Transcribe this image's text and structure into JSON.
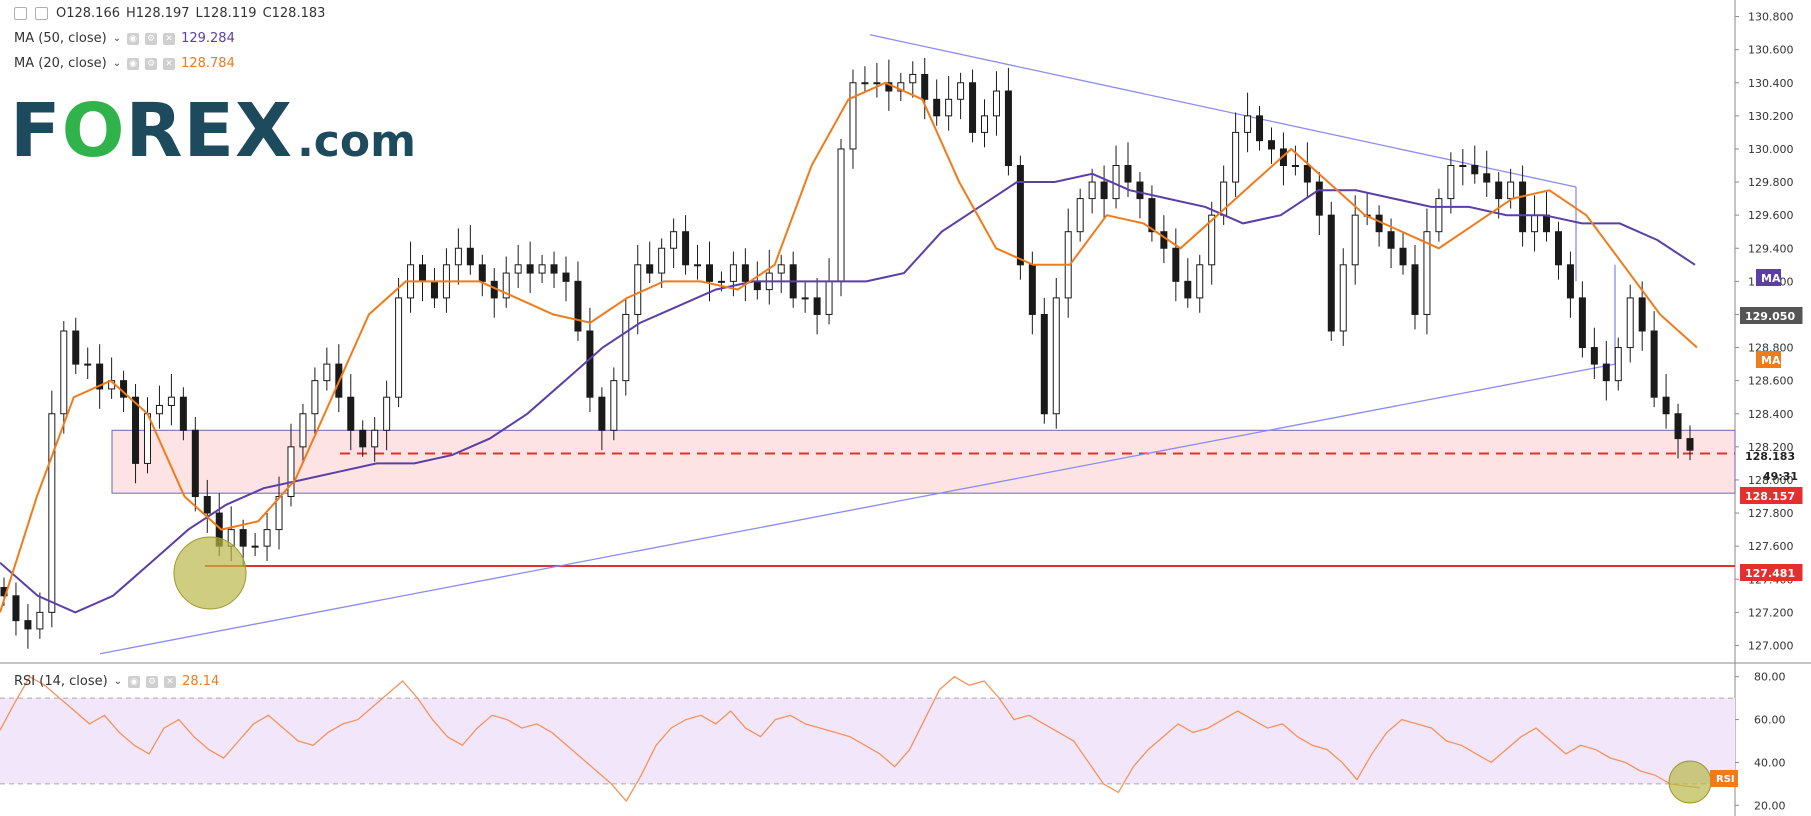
{
  "legend": {
    "ohlc": {
      "open": "O128.166",
      "high": "H128.197",
      "low": "L128.119",
      "close": "C128.183"
    },
    "ma50": {
      "label": "MA (50, close)",
      "value": "129.284"
    },
    "ma20": {
      "label": "MA (20, close)",
      "value": "128.784"
    },
    "rsi": {
      "label": "RSI (14, close)",
      "value": "28.14"
    }
  },
  "logo": {
    "f": "F",
    "o": "O",
    "rex": "REX",
    "dotcom": ".com"
  },
  "colors": {
    "candle": "#1a1a1a",
    "ma50": "#5b3fa6",
    "ma20": "#f07b1a",
    "trendline": "#8a8cf0",
    "zone_fill": "#fde3e3",
    "support": "#e52f2f",
    "rsi_line": "#f5935a",
    "rsi_band": "#f2e6fb",
    "highlight": "#b9b84a"
  },
  "chart_data": [
    {
      "type": "candlestick",
      "title": "",
      "ylim": [
        126.9,
        130.9
      ],
      "y_ticks": [
        "127.000",
        "127.200",
        "127.400",
        "127.600",
        "127.800",
        "128.000",
        "128.200",
        "128.400",
        "128.600",
        "128.800",
        "129.000",
        "129.200",
        "129.400",
        "129.600",
        "129.800",
        "130.000",
        "130.200",
        "130.400",
        "130.600",
        "130.800"
      ],
      "close_series": [
        127.3,
        127.15,
        127.1,
        127.2,
        128.4,
        128.9,
        128.7,
        128.7,
        128.55,
        128.6,
        128.5,
        128.1,
        128.4,
        128.45,
        128.5,
        128.3,
        127.9,
        127.8,
        127.6,
        127.7,
        127.6,
        127.6,
        127.7,
        127.9,
        128.2,
        128.4,
        128.6,
        128.7,
        128.5,
        128.3,
        128.2,
        128.3,
        128.5,
        129.1,
        129.3,
        129.2,
        129.1,
        129.3,
        129.4,
        129.3,
        129.2,
        129.1,
        129.25,
        129.3,
        129.25,
        129.3,
        129.25,
        129.2,
        128.9,
        128.5,
        128.3,
        128.6,
        129.0,
        129.3,
        129.25,
        129.4,
        129.5,
        129.3,
        129.3,
        129.2,
        129.2,
        129.3,
        129.2,
        129.15,
        129.25,
        129.3,
        129.1,
        129.1,
        129.0,
        129.2,
        130.0,
        130.4,
        130.4,
        130.4,
        130.35,
        130.4,
        130.45,
        130.3,
        130.2,
        130.3,
        130.4,
        130.1,
        130.2,
        130.35,
        129.9,
        129.3,
        129.0,
        128.4,
        129.1,
        129.5,
        129.7,
        129.8,
        129.7,
        129.9,
        129.8,
        129.7,
        129.5,
        129.4,
        129.2,
        129.1,
        129.3,
        129.6,
        129.8,
        130.1,
        130.2,
        130.05,
        130.0,
        129.9,
        129.9,
        129.8,
        129.6,
        128.9,
        129.3,
        129.6,
        129.6,
        129.5,
        129.4,
        129.3,
        129.0,
        129.5,
        129.7,
        129.9,
        129.9,
        129.85,
        129.8,
        129.7,
        129.8,
        129.5,
        129.6,
        129.5,
        129.3,
        129.1,
        128.8,
        128.7,
        128.6,
        128.8,
        129.1,
        128.9,
        128.5,
        128.4,
        128.25,
        128.18
      ],
      "ma50_series": [
        127.5,
        127.3,
        127.2,
        127.3,
        127.5,
        127.7,
        127.85,
        127.95,
        128.0,
        128.05,
        128.1,
        128.1,
        128.15,
        128.25,
        128.4,
        128.6,
        128.8,
        128.95,
        129.05,
        129.15,
        129.2,
        129.2,
        129.2,
        129.2,
        129.25,
        129.5,
        129.65,
        129.8,
        129.8,
        129.85,
        129.75,
        129.7,
        129.65,
        129.55,
        129.6,
        129.75,
        129.75,
        129.7,
        129.65,
        129.65,
        129.6,
        129.6,
        129.55,
        129.55,
        129.45,
        129.3
      ],
      "ma20_series": [
        127.2,
        127.9,
        128.5,
        128.6,
        128.4,
        127.9,
        127.7,
        127.75,
        128.0,
        128.5,
        129.0,
        129.2,
        129.2,
        129.2,
        129.1,
        129.0,
        128.95,
        129.1,
        129.2,
        129.2,
        129.15,
        129.3,
        129.9,
        130.3,
        130.4,
        130.3,
        129.8,
        129.4,
        129.3,
        129.3,
        129.6,
        129.55,
        129.4,
        129.6,
        129.8,
        130.0,
        129.8,
        129.6,
        129.5,
        129.4,
        129.55,
        129.7,
        129.75,
        129.6,
        129.3,
        129.0,
        128.8
      ],
      "trendlines": [
        {
          "name": "upper",
          "from": [
            0.0,
            130.69
          ],
          "to": [
            1.0,
            129.77
          ]
        },
        {
          "name": "lower",
          "from": [
            0.0,
            126.95
          ],
          "to": [
            1.0,
            128.7
          ]
        }
      ],
      "support_zone": {
        "top": 128.3,
        "bottom": 127.92,
        "mid": 128.16
      },
      "support_line": 127.48,
      "price_labels": [
        {
          "text": "MA",
          "kind": "ma50"
        },
        {
          "text": "129.050",
          "kind": "level"
        },
        {
          "text": "MA",
          "kind": "ma20"
        },
        {
          "text": "128.183",
          "kind": "price"
        },
        {
          "text": "49:31",
          "kind": "timer"
        },
        {
          "text": "128.157",
          "kind": "zone"
        },
        {
          "text": "127.481",
          "kind": "support"
        }
      ]
    },
    {
      "type": "line",
      "title": "",
      "ylim": [
        15,
        85
      ],
      "y_ticks": [
        "20.00",
        "40.00",
        "60.00",
        "80.00"
      ],
      "band": [
        30,
        70
      ],
      "series": [
        {
          "values": [
            55,
            68,
            80,
            76,
            70,
            64,
            58,
            62,
            54,
            48,
            44,
            56,
            60,
            52,
            46,
            42,
            50,
            58,
            62,
            56,
            50,
            48,
            54,
            58,
            60,
            66,
            72,
            78,
            70,
            60,
            52,
            48,
            56,
            62,
            60,
            56,
            58,
            54,
            48,
            42,
            36,
            30,
            22,
            34,
            48,
            56,
            60,
            62,
            58,
            64,
            56,
            52,
            60,
            62,
            58,
            56,
            54,
            52,
            48,
            44,
            38,
            46,
            60,
            74,
            80,
            76,
            78,
            70,
            60,
            62,
            58,
            54,
            50,
            40,
            30,
            26,
            38,
            46,
            52,
            58,
            54,
            56,
            60,
            64,
            60,
            56,
            58,
            52,
            48,
            46,
            40,
            32,
            44,
            54,
            60,
            58,
            56,
            50,
            48,
            44,
            40,
            46,
            52,
            56,
            50,
            44,
            48,
            46,
            42,
            40,
            36,
            34,
            30,
            29,
            28.14
          ]
        }
      ],
      "label": "RSI"
    }
  ]
}
